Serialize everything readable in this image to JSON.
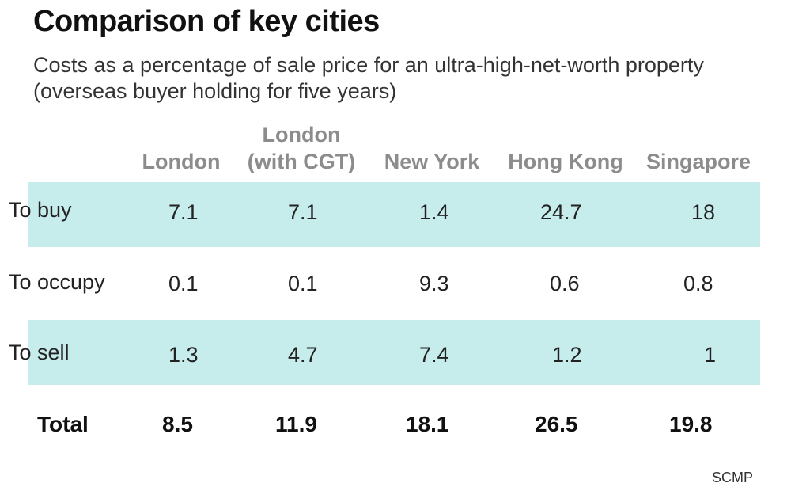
{
  "chart_data": {
    "type": "table",
    "title": "Comparison of key cities",
    "subtitle": "Costs as a percentage of sale price for an ultra-high-net-worth property (overseas buyer holding for five years)",
    "columns": [
      {
        "lines": [
          "London"
        ]
      },
      {
        "lines": [
          "London",
          "(with CGT)"
        ]
      },
      {
        "lines": [
          "New York"
        ]
      },
      {
        "lines": [
          "Hong Kong"
        ]
      },
      {
        "lines": [
          "Singapore"
        ]
      }
    ],
    "rows": [
      {
        "label": "To buy",
        "values": [
          "7.1",
          "7.1",
          "1.4",
          "24.7",
          "18"
        ]
      },
      {
        "label": "To occupy",
        "values": [
          "0.1",
          "0.1",
          "9.3",
          "0.6",
          "0.8"
        ]
      },
      {
        "label": "To sell",
        "values": [
          "1.3",
          "4.7",
          "7.4",
          "1.2",
          "1"
        ]
      }
    ],
    "total": {
      "label": "Total",
      "values": [
        "8.5",
        "11.9",
        "18.1",
        "26.5",
        "19.8"
      ]
    },
    "source": "SCMP",
    "colors": {
      "band": "#c7ecec",
      "header": "#8c8c8c",
      "text": "#222222"
    }
  }
}
